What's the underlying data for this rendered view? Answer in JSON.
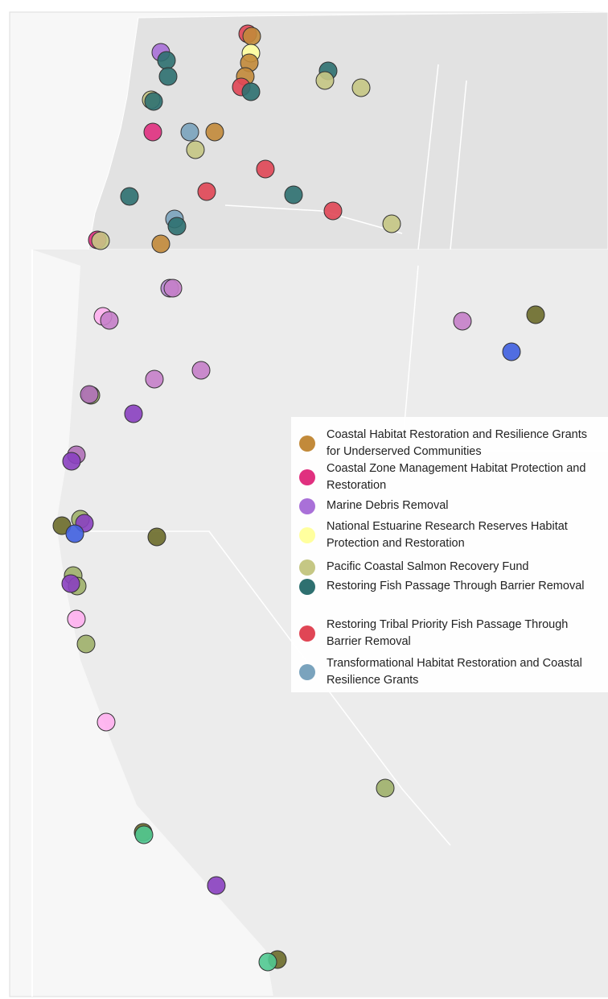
{
  "legend": {
    "items": [
      {
        "label": "Coastal Habitat Restoration and Resilience Grants for Underserved Communities",
        "color": "#c28a3a"
      },
      {
        "label": "Coastal Zone Management Habitat Protection and Restoration",
        "color": "#e0307f"
      },
      {
        "label": "Marine Debris Removal",
        "color": "#a970d8"
      },
      {
        "label": "National Estuarine Research Reserves Habitat Protection and Restoration",
        "color": "#ffff9e"
      },
      {
        "label": "Pacific Coastal Salmon Recovery Fund",
        "color": "#c5c784"
      },
      {
        "label": "Restoring Fish Passage Through Barrier Removal",
        "color": "#2e7070"
      },
      {
        "label": "Restoring Tribal Priority Fish Passage Through Barrier Removal",
        "color": "#e04655"
      },
      {
        "label": "Transformational Habitat Restoration and Coastal Resilience Grants",
        "color": "#7aa3bd"
      }
    ]
  }
}
